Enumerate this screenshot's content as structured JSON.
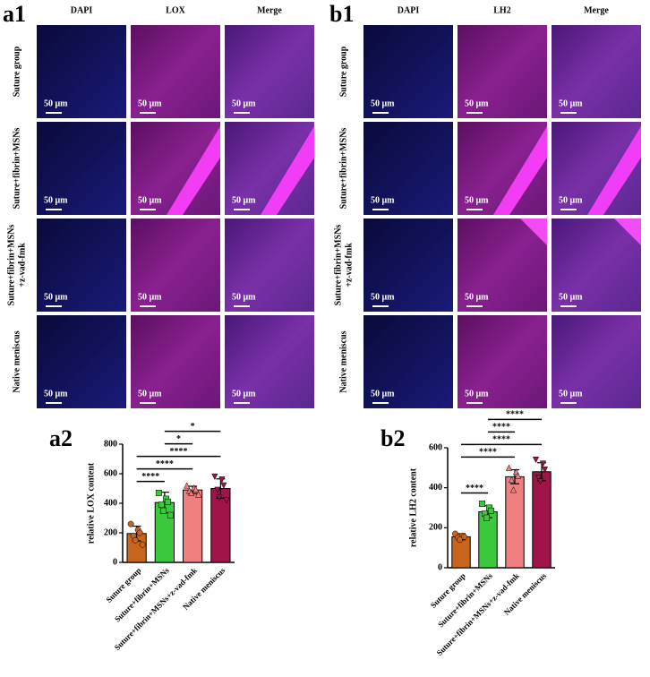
{
  "panels": [
    {
      "label": "a1",
      "columns": [
        "DAPI",
        "LOX",
        "Merge"
      ],
      "rows": [
        [
          "Suture group"
        ],
        [
          "Suture+fibrin+MSNs"
        ],
        [
          "Suture+fibrin+MSNs",
          "+z-vad-fmk"
        ],
        [
          "Native meniscus"
        ]
      ],
      "scale_bar": "50 μm"
    },
    {
      "label": "b1",
      "columns": [
        "DAPI",
        "LH2",
        "Merge"
      ],
      "rows": [
        [
          "Suture group"
        ],
        [
          "Suture+fibrin+MSNs"
        ],
        [
          "Suture+fibrin+MSNs",
          "+z-vad-fmk"
        ],
        [
          "Native meniscus"
        ]
      ],
      "scale_bar": "50 μm"
    }
  ],
  "chart_data": [
    {
      "type": "bar",
      "label": "a2",
      "ylabel": "relative LOX content",
      "categories": [
        "Suture group",
        "Suture+fibrin+MSNs",
        "Suture+fibrin+MSNs+z-vad-fmk",
        "Native meniscus"
      ],
      "values": [
        195,
        405,
        490,
        500
      ],
      "errors": [
        50,
        70,
        25,
        65
      ],
      "colors": [
        "#c8641e",
        "#3cc83c",
        "#f08080",
        "#a0144a"
      ],
      "markers": [
        "circle",
        "square",
        "triangle-up",
        "triangle-down"
      ],
      "points": [
        [
          260,
          220,
          200,
          180,
          150,
          120
        ],
        [
          470,
          430,
          410,
          390,
          350,
          320
        ],
        [
          520,
          505,
          495,
          485,
          470,
          460
        ],
        [
          580,
          560,
          520,
          490,
          440,
          420
        ]
      ],
      "ylim": [
        0,
        800
      ],
      "yticks": [
        0,
        200,
        400,
        600,
        800
      ],
      "significance": [
        {
          "from": 0,
          "to": 1,
          "label": "****"
        },
        {
          "from": 0,
          "to": 2,
          "label": "****"
        },
        {
          "from": 0,
          "to": 3,
          "label": "****"
        },
        {
          "from": 1,
          "to": 2,
          "label": "*"
        },
        {
          "from": 1,
          "to": 3,
          "label": "*"
        }
      ]
    },
    {
      "type": "bar",
      "label": "b2",
      "ylabel": "relative LH2 content",
      "categories": [
        "Suture group",
        "Suture+fibrin+MSNs",
        "Suture+fibrin+MSNs+z-vad-fmk",
        "Native meniscus"
      ],
      "values": [
        155,
        280,
        455,
        480
      ],
      "errors": [
        15,
        30,
        35,
        45
      ],
      "colors": [
        "#c8641e",
        "#3cc83c",
        "#f08080",
        "#a0144a"
      ],
      "markers": [
        "circle",
        "square",
        "triangle-up",
        "triangle-down"
      ],
      "points": [
        [
          170,
          160,
          155,
          150,
          140
        ],
        [
          320,
          300,
          285,
          270,
          250
        ],
        [
          500,
          480,
          460,
          440,
          390
        ],
        [
          540,
          520,
          490,
          450,
          430
        ]
      ],
      "ylim": [
        0,
        600
      ],
      "yticks": [
        0,
        200,
        400,
        600
      ],
      "significance": [
        {
          "from": 0,
          "to": 1,
          "label": "****"
        },
        {
          "from": 0,
          "to": 2,
          "label": "****"
        },
        {
          "from": 0,
          "to": 3,
          "label": "****"
        },
        {
          "from": 1,
          "to": 2,
          "label": "****"
        },
        {
          "from": 1,
          "to": 3,
          "label": "****"
        }
      ]
    }
  ]
}
